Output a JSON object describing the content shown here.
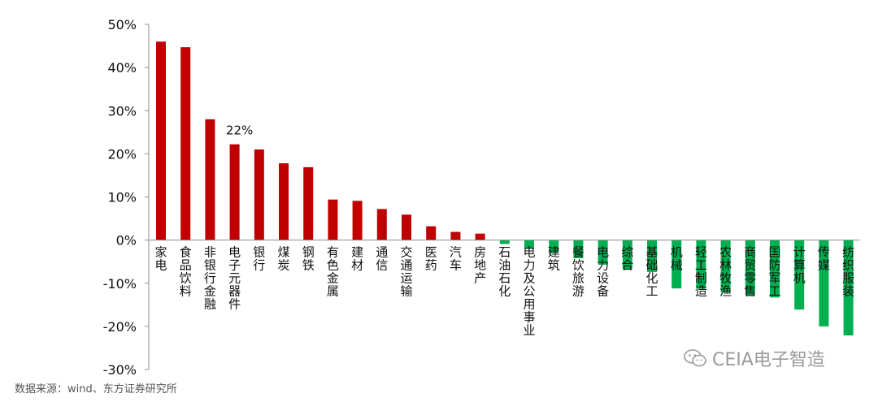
{
  "chart_data": {
    "type": "bar",
    "categories": [
      "家电",
      "食品饮料",
      "非银行金融",
      "电子元器件",
      "银行",
      "煤炭",
      "钢铁",
      "有色金属",
      "建材",
      "通信",
      "交通运输",
      "医药",
      "汽车",
      "房地产",
      "石油石化",
      "电力及公用事业",
      "建筑",
      "餐饮旅游",
      "电力设备",
      "综合",
      "基础化工",
      "机械",
      "轻工制造",
      "农林牧渔",
      "商贸零售",
      "国防军工",
      "计算机",
      "传媒",
      "纺织服装"
    ],
    "values": [
      46.0,
      44.7,
      28.0,
      22.2,
      21.0,
      17.8,
      16.9,
      9.4,
      9.1,
      7.2,
      5.9,
      3.2,
      1.9,
      1.5,
      -0.9,
      -2.0,
      -3.0,
      -4.2,
      -5.7,
      -6.8,
      -7.4,
      -11.2,
      -11.3,
      -12.1,
      -12.8,
      -13.3,
      -16.1,
      -20.0,
      -22.1
    ],
    "colors": {
      "positive": "#c00000",
      "negative": "#00b050"
    },
    "y_ticks": [
      "50%",
      "40%",
      "30%",
      "20%",
      "10%",
      "0%",
      "-10%",
      "-20%",
      "-30%"
    ],
    "ylim": [
      -30,
      50
    ],
    "annotation": {
      "index": 3,
      "text": "22%"
    },
    "xlabel": "",
    "ylabel": "",
    "title": "",
    "grid": false
  },
  "footer": {
    "source": "数据来源：wind、东方证券研究所",
    "watermark": "CEIA电子智造",
    "watermark_icon": "wechat-icon"
  }
}
